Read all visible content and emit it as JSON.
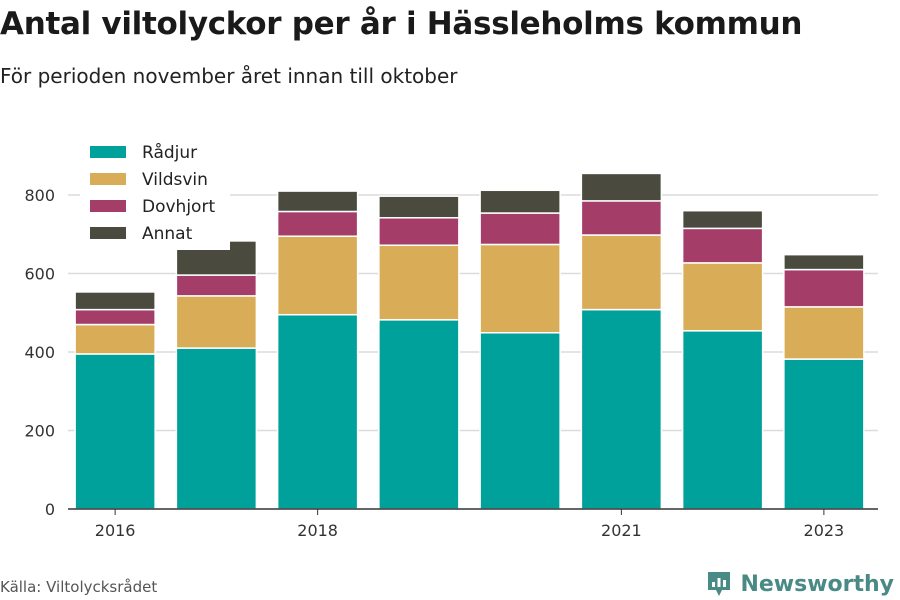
{
  "title": "Antal viltolyckor per år i Hässleholms kommun",
  "subtitle": "För perioden november året innan till oktober",
  "source": "Källa: Viltolycksrådet",
  "brand": {
    "name": "Newsworthy",
    "icon": "bar-chart-logo-icon",
    "color": "#4a8a86"
  },
  "chart_data": {
    "type": "bar",
    "stacked": true,
    "categories": [
      "2016",
      "2017",
      "2018",
      "2019",
      "2020",
      "2021",
      "2022",
      "2023"
    ],
    "x_tick_labels": [
      "2016",
      "",
      "2018",
      "",
      "",
      "2021",
      "",
      "2023"
    ],
    "series": [
      {
        "name": "Rådjur",
        "color": "#00a19a",
        "values": [
          395,
          410,
          495,
          482,
          449,
          508,
          454,
          382
        ]
      },
      {
        "name": "Vildsvin",
        "color": "#d9ad57",
        "values": [
          75,
          133,
          200,
          190,
          225,
          190,
          173,
          133
        ]
      },
      {
        "name": "Dovhjort",
        "color": "#a43d68",
        "values": [
          38,
          53,
          63,
          70,
          80,
          87,
          88,
          95
        ]
      },
      {
        "name": "Annat",
        "color": "#4a4a3e",
        "values": [
          45,
          87,
          52,
          55,
          58,
          70,
          45,
          38
        ]
      }
    ],
    "y_ticks": [
      0,
      200,
      400,
      600,
      800
    ],
    "ylim": [
      0,
      920
    ],
    "grid": true,
    "legend_placement": "top-left"
  }
}
